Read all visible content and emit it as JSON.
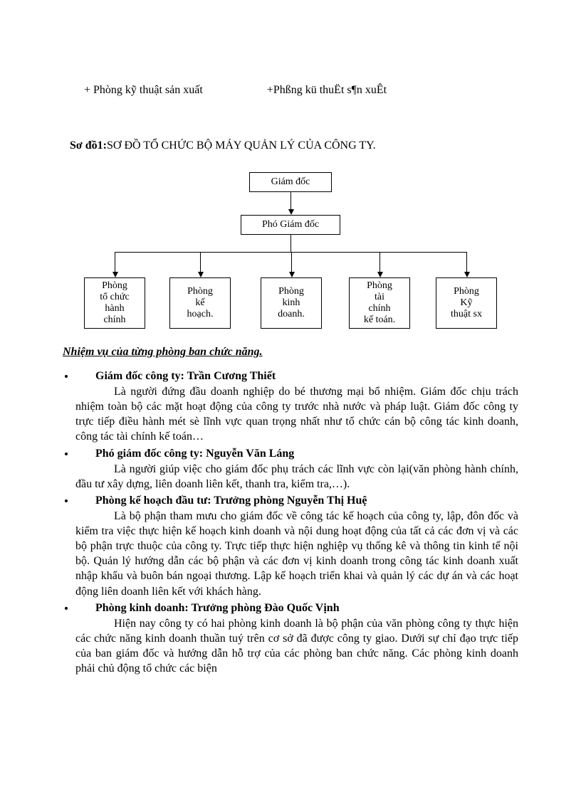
{
  "top_left_line": "+ Phòng kỹ thuật sản xuất",
  "top_right_line": "+Phßng kü thuËt s¶n xuÊt",
  "chart_title_prefix": "Sơ đồ1:",
  "chart_title_rest": "SƠ ĐỒ TỔ CHỨC BỘ MÁY QUẢN LÝ CỦA CÔNG TY.",
  "org": {
    "root": "Giám đốc",
    "mid": "Phó Giám đốc",
    "leaves": [
      "Phòng\ntổ chức\nhành\nchính",
      "Phòng\nkế\nhoạch.",
      "Phòng\nkinh\ndoanh.",
      "Phòng\ntài\nchính\nkế toán.",
      "Phòng\nKỹ\nthuật sx"
    ],
    "colors": {
      "node_border": "#000000",
      "node_bg": "#ffffff",
      "line": "#000000",
      "text": "#000000"
    },
    "node_font_size_pt": 11
  },
  "subtitle": "Nhiệm vụ của từng phòng ban chức năng.",
  "items": [
    {
      "head": "Giám đốc công ty: Trần Cương Thiết",
      "body": "Là người đứng đầu doanh nghiệp do bé thương mại bổ nhiệm. Giám đốc chịu trách nhiệm toàn bộ các mặt hoạt động của công ty trước nhà nước và pháp luật. Giám đốc công ty trực tiếp điều hành mét sè lĩnh vực quan trọng nhất như tổ chức cán bộ công tác kinh doanh, công tác tài chính kế toán…"
    },
    {
      "head": "Phó giám đốc công ty: Nguyễn Văn Láng",
      "body": "Là người giúp việc cho giám đốc phụ trách các lĩnh vực còn lại(văn phòng hành chính, đầu tư xây dựng, liên doanh liên kết, thanh tra, kiểm tra,…)."
    },
    {
      "head": "Phòng kế hoạch đầu tư: Trưởng phòng Nguyễn Thị Huệ",
      "body": "Là bộ phận tham mưu cho giám đốc về công tác kế hoạch của công ty, lập, đôn đốc và kiểm tra việc thực hiện kế hoạch kinh doanh và nội dung hoạt động của tất cả các đơn vị và các bộ phận trực thuộc của công ty. Trực tiếp thực hiện nghiệp vụ thống kê và thông tin kinh tế nội bộ. Quản lý hướng dẫn các bộ phận và các đơn vị kinh doanh trong công tác kinh doanh xuất nhập khẩu và buôn bán ngoại thương. Lập kế hoạch triển khai và quản lý các dự án và các hoạt động liên doanh liên kết với khách hàng."
    },
    {
      "head": "Phòng kinh doanh: Trưởng phòng Đào Quốc Vịnh",
      "body": "Hiện nay công ty có hai phòng kinh doanh là bộ phận của văn phòng công ty thực hiện các chức năng kinh doanh thuần tuý trên cơ sở đã được công ty giao. Dưới sự chỉ đạo trực tiếp của ban giám đốc và hướng dẫn hỗ trợ của các phòng ban chức năng. Các phòng kinh doanh phải chủ động tổ chức các biện"
    }
  ],
  "typography": {
    "body_font_family": "Times New Roman",
    "body_font_size_pt": 12,
    "line_height": 1.32,
    "text_color": "#000000",
    "background": "#ffffff"
  }
}
